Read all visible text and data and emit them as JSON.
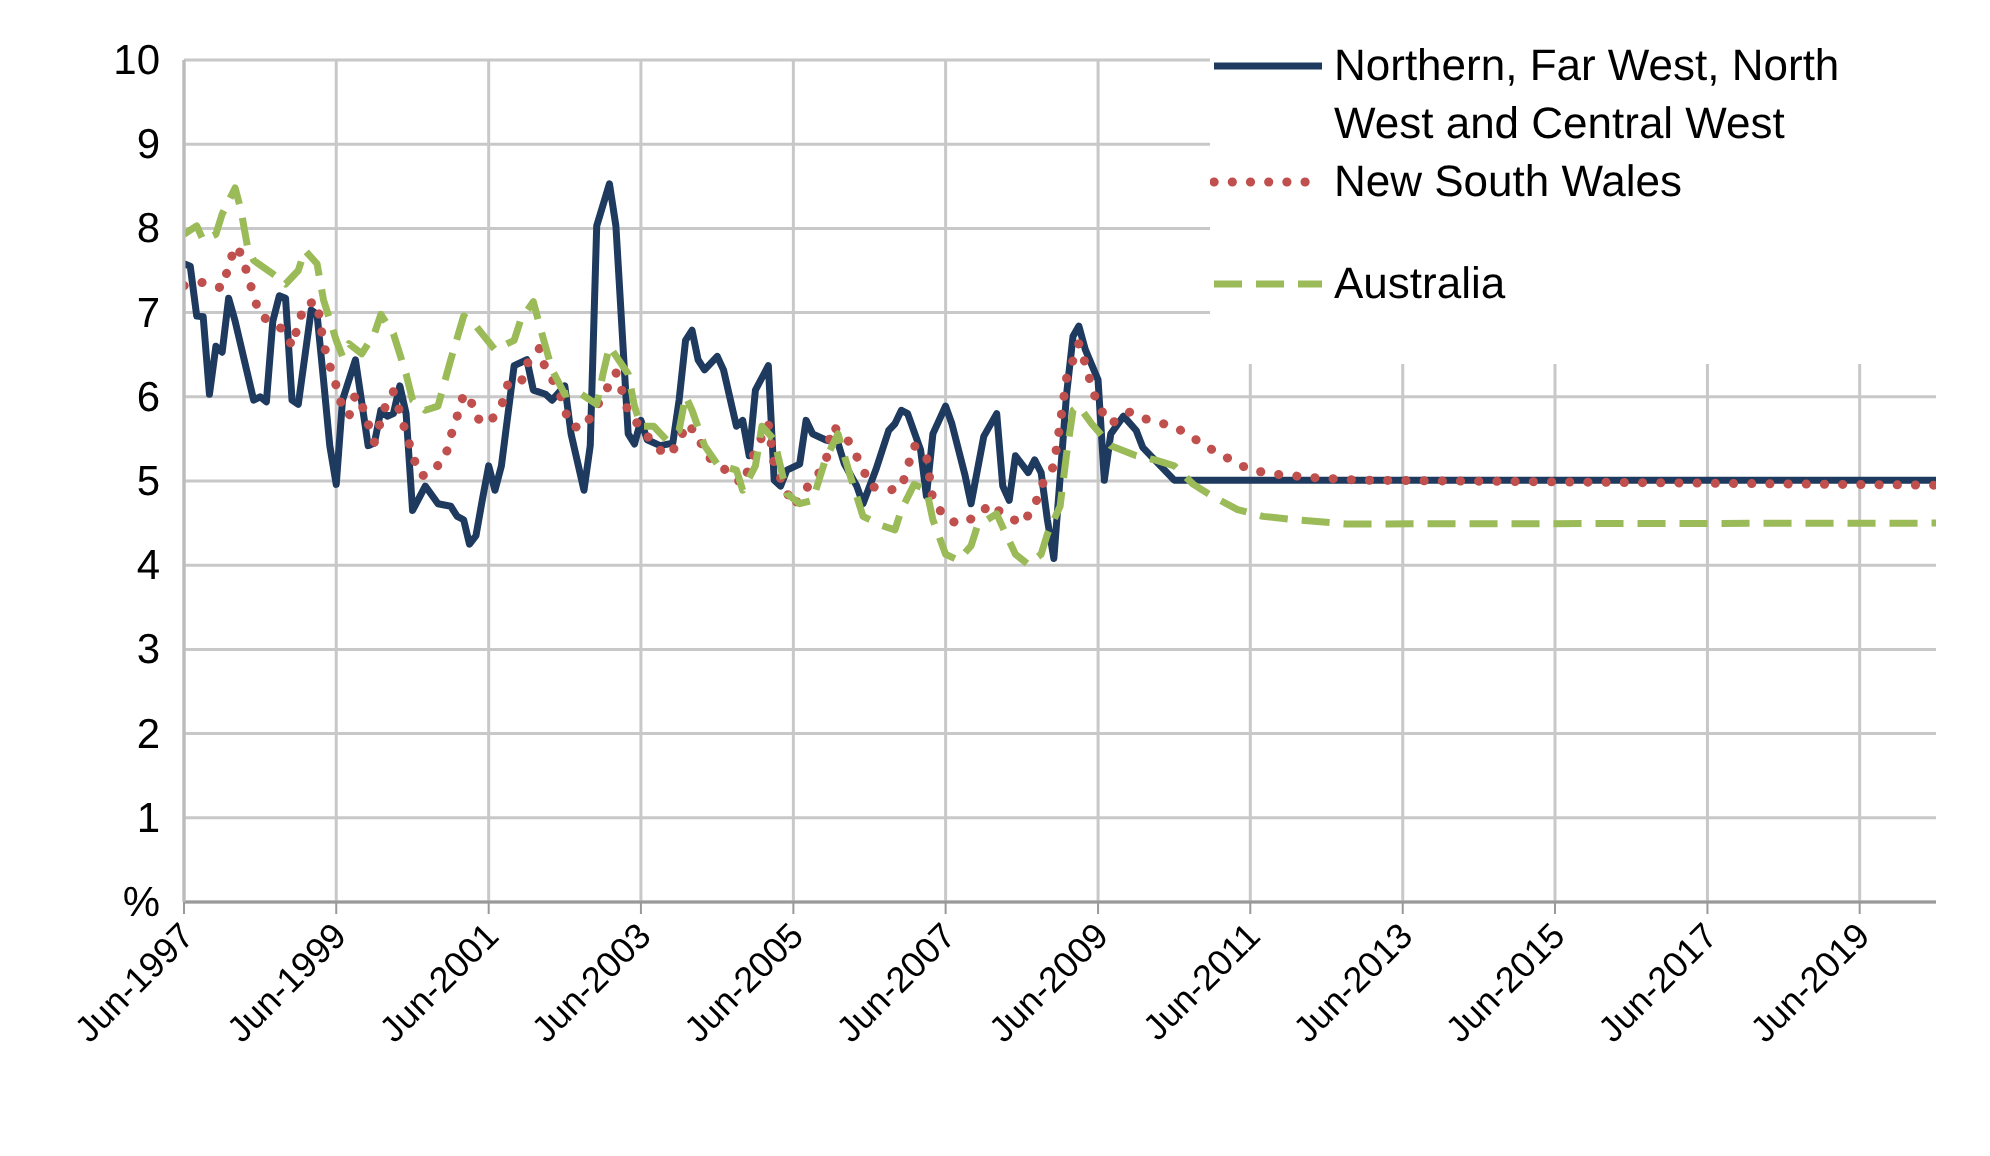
{
  "chart_data": {
    "type": "line",
    "legend": "top right",
    "grid": true,
    "ylim": [
      0,
      10
    ],
    "yticks": [
      {
        "value": 0,
        "label": "%"
      },
      1,
      2,
      3,
      4,
      5,
      6,
      7,
      8,
      9,
      10
    ],
    "xlim": [
      "1997-06",
      "2020-06"
    ],
    "xticks": [
      {
        "value": "1997-06",
        "label": "Jun-1997"
      },
      {
        "value": "1999-06",
        "label": "Jun-1999"
      },
      {
        "value": "2001-06",
        "label": "Jun-2001"
      },
      {
        "value": "2003-06",
        "label": "Jun-2003"
      },
      {
        "value": "2005-06",
        "label": "Jun-2005"
      },
      {
        "value": "2007-06",
        "label": "Jun-2007"
      },
      {
        "value": "2009-06",
        "label": "Jun-2009"
      },
      {
        "value": "2011-06",
        "label": "Jun-2011"
      },
      {
        "value": "2013-06",
        "label": "Jun-2013"
      },
      {
        "value": "2015-06",
        "label": "Jun-2015"
      },
      {
        "value": "2017-06",
        "label": "Jun-2017"
      },
      {
        "value": "2019-06",
        "label": "Jun-2019"
      }
    ],
    "series": [
      {
        "name": "Northern, Far West, North West and Central West",
        "color": "#1f3a5f",
        "line_style": "solid",
        "x": [
          "1997-06",
          "1997-07",
          "1997-08",
          "1997-09",
          "1997-10",
          "1997-11",
          "1997-12",
          "1998-01",
          "1998-02",
          "1998-05",
          "1998-06",
          "1998-07",
          "1998-08",
          "1998-09",
          "1998-10",
          "1998-11",
          "1998-12",
          "1999-02",
          "1999-03",
          "1999-04",
          "1999-05",
          "1999-06",
          "1999-07",
          "1999-09",
          "1999-11",
          "1999-12",
          "2000-01",
          "2000-02",
          "2000-03",
          "2000-04",
          "2000-05",
          "2000-06",
          "2000-08",
          "2000-10",
          "2000-12",
          "2001-01",
          "2001-02",
          "2001-03",
          "2001-04",
          "2001-05",
          "2001-06",
          "2001-07",
          "2001-08",
          "2001-10",
          "2001-12",
          "2002-01",
          "2002-03",
          "2002-04",
          "2002-06",
          "2002-07",
          "2002-09",
          "2002-10",
          "2002-11",
          "2003-01",
          "2003-02",
          "2003-04",
          "2003-05",
          "2003-06",
          "2003-07",
          "2003-09",
          "2003-11",
          "2003-12",
          "2004-01",
          "2004-02",
          "2004-03",
          "2004-04",
          "2004-06",
          "2004-07",
          "2004-09",
          "2004-10",
          "2004-11",
          "2004-12",
          "2005-02",
          "2005-03",
          "2005-04",
          "2005-05",
          "2005-07",
          "2005-08",
          "2005-09",
          "2005-11",
          "2006-01",
          "2006-02",
          "2006-04",
          "2006-05",
          "2006-07",
          "2006-09",
          "2006-10",
          "2006-11",
          "2006-12",
          "2007-02",
          "2007-03",
          "2007-04",
          "2007-06",
          "2007-07",
          "2007-09",
          "2007-10",
          "2007-12",
          "2008-02",
          "2008-03",
          "2008-04",
          "2008-05",
          "2008-07",
          "2008-08",
          "2008-09",
          "2008-10",
          "2008-11",
          "2009-01",
          "2009-02",
          "2009-03",
          "2009-04",
          "2009-06",
          "2009-07",
          "2009-08",
          "2009-10",
          "2009-12",
          "2010-01",
          "2010-06",
          "2020-06"
        ],
        "values": [
          7.58,
          7.55,
          6.96,
          6.95,
          6.03,
          6.6,
          6.53,
          7.17,
          6.9,
          5.96,
          6.0,
          5.94,
          6.9,
          7.2,
          7.17,
          5.96,
          5.91,
          7.03,
          6.98,
          6.2,
          5.42,
          4.96,
          5.96,
          6.44,
          5.42,
          5.45,
          5.84,
          5.77,
          5.8,
          6.13,
          5.8,
          4.65,
          4.94,
          4.73,
          4.7,
          4.58,
          4.54,
          4.25,
          4.35,
          4.77,
          5.18,
          4.89,
          5.18,
          6.37,
          6.44,
          6.08,
          6.03,
          5.96,
          6.13,
          5.56,
          4.89,
          5.42,
          8.03,
          8.53,
          8.03,
          5.56,
          5.44,
          5.72,
          5.49,
          5.42,
          5.45,
          5.96,
          6.67,
          6.79,
          6.44,
          6.32,
          6.48,
          6.32,
          5.65,
          5.72,
          5.3,
          6.08,
          6.37,
          5.01,
          4.94,
          5.13,
          5.2,
          5.72,
          5.56,
          5.49,
          5.45,
          5.2,
          4.94,
          4.73,
          5.13,
          5.6,
          5.68,
          5.84,
          5.8,
          5.37,
          4.82,
          5.56,
          5.89,
          5.68,
          5.08,
          4.73,
          5.53,
          5.8,
          4.94,
          4.77,
          5.3,
          5.1,
          5.25,
          5.1,
          4.54,
          4.08,
          6.03,
          6.72,
          6.84,
          6.56,
          6.2,
          5.01,
          5.56,
          5.77,
          5.6,
          5.4,
          5.01,
          5.01
        ]
      },
      {
        "name": "New South Wales",
        "color": "#c0504d",
        "line_style": "dotted",
        "x": [
          "1997-06",
          "1997-09",
          "1997-12",
          "1998-01",
          "1998-02",
          "1998-03",
          "1998-04",
          "1998-05",
          "1998-06",
          "1998-08",
          "1998-10",
          "1998-11",
          "1998-12",
          "1999-01",
          "1999-03",
          "1999-04",
          "1999-05",
          "1999-06",
          "1999-07",
          "1999-08",
          "1999-09",
          "1999-10",
          "1999-11",
          "1999-12",
          "2000-01",
          "2000-02",
          "2000-03",
          "2000-04",
          "2000-05",
          "2000-06",
          "2000-07",
          "2000-08",
          "2000-11",
          "2000-12",
          "2001-01",
          "2001-02",
          "2001-03",
          "2001-04",
          "2001-06",
          "2001-08",
          "2001-09",
          "2001-11",
          "2001-12",
          "2002-02",
          "2002-03",
          "2002-05",
          "2002-06",
          "2002-07",
          "2002-09",
          "2002-12",
          "2003-02",
          "2003-03",
          "2003-04",
          "2003-06",
          "2003-08",
          "2003-10",
          "2003-12",
          "2004-01",
          "2004-03",
          "2004-04",
          "2004-07",
          "2004-10",
          "2004-12",
          "2005-02",
          "2005-03",
          "2005-06",
          "2005-09",
          "2005-11",
          "2005-12",
          "2006-02",
          "2006-05",
          "2006-06",
          "2006-09",
          "2006-11",
          "2007-01",
          "2007-03",
          "2007-04",
          "2007-06",
          "2007-08",
          "2007-11",
          "2008-01",
          "2008-03",
          "2008-06",
          "2008-08",
          "2008-09",
          "2008-11",
          "2008-12",
          "2009-01",
          "2009-03",
          "2009-04",
          "2009-05",
          "2009-06",
          "2009-08",
          "2009-11",
          "2010-02",
          "2010-06",
          "2010-09",
          "2010-12",
          "2011-03",
          "2011-06",
          "2011-10",
          "2012-04",
          "2012-11",
          "2020-06"
        ],
        "values": [
          7.32,
          7.36,
          7.29,
          7.55,
          7.79,
          7.7,
          7.46,
          7.2,
          6.96,
          6.89,
          6.77,
          6.6,
          6.86,
          7.1,
          7.13,
          6.63,
          6.37,
          6.13,
          5.87,
          5.77,
          6.03,
          5.91,
          5.68,
          5.46,
          5.72,
          5.96,
          6.06,
          5.82,
          5.56,
          5.32,
          5.08,
          5.06,
          5.25,
          5.53,
          5.77,
          6.03,
          6.01,
          5.75,
          5.68,
          5.89,
          6.15,
          6.15,
          6.39,
          6.58,
          6.32,
          6.1,
          5.84,
          5.65,
          5.63,
          6.01,
          6.29,
          6.08,
          5.82,
          5.63,
          5.44,
          5.3,
          5.44,
          5.68,
          5.56,
          5.32,
          5.15,
          4.96,
          5.37,
          5.68,
          5.2,
          4.7,
          5.01,
          5.18,
          5.65,
          5.56,
          5.15,
          4.94,
          4.89,
          4.92,
          5.42,
          5.3,
          4.77,
          4.56,
          4.49,
          4.58,
          4.73,
          4.61,
          4.49,
          4.7,
          4.94,
          5.18,
          5.68,
          6.22,
          6.63,
          6.39,
          6.13,
          5.89,
          5.68,
          5.82,
          5.72,
          5.65,
          5.51,
          5.37,
          5.25,
          5.13,
          5.08,
          5.04,
          5.01,
          4.95
        ]
      },
      {
        "name": "Australia",
        "color": "#9bbb59",
        "line_style": "dashed",
        "x": [
          "1997-06",
          "1997-08",
          "1997-09",
          "1997-11",
          "1997-12",
          "1998-02",
          "1998-03",
          "1998-04",
          "1998-05",
          "1998-08",
          "1998-10",
          "1998-12",
          "1999-01",
          "1999-03",
          "1999-04",
          "1999-06",
          "1999-07",
          "1999-08",
          "1999-10",
          "1999-12",
          "2000-01",
          "2000-03",
          "2000-05",
          "2000-06",
          "2000-08",
          "2000-10",
          "2000-12",
          "2001-02",
          "2001-04",
          "2001-07",
          "2001-10",
          "2001-11",
          "2002-01",
          "2002-02",
          "2002-04",
          "2002-06",
          "2002-08",
          "2002-11",
          "2002-12",
          "2003-01",
          "2003-04",
          "2003-05",
          "2003-06",
          "2003-08",
          "2003-10",
          "2003-12",
          "2004-01",
          "2004-02",
          "2004-04",
          "2004-06",
          "2004-09",
          "2004-10",
          "2004-12",
          "2005-01",
          "2005-03",
          "2005-05",
          "2005-07",
          "2005-09",
          "2005-11",
          "2006-01",
          "2006-03",
          "2006-05",
          "2006-08",
          "2006-10",
          "2006-11",
          "2007-01",
          "2007-03",
          "2007-04",
          "2007-06",
          "2007-08",
          "2007-10",
          "2007-11",
          "2008-02",
          "2008-03",
          "2008-05",
          "2008-07",
          "2008-09",
          "2008-10",
          "2008-12",
          "2009-01",
          "2009-02",
          "2009-03",
          "2009-05",
          "2009-08",
          "2009-12",
          "2010-03",
          "2010-06",
          "2010-09",
          "2010-12",
          "2011-04",
          "2011-08",
          "2012-01",
          "2012-09",
          "2020-06"
        ],
        "values": [
          7.93,
          8.03,
          7.86,
          7.93,
          8.17,
          8.48,
          8.22,
          7.79,
          7.62,
          7.46,
          7.34,
          7.5,
          7.74,
          7.58,
          7.15,
          6.67,
          6.48,
          6.63,
          6.51,
          6.75,
          6.98,
          6.75,
          6.27,
          5.96,
          5.84,
          5.89,
          6.44,
          6.96,
          6.84,
          6.56,
          6.67,
          6.91,
          7.13,
          6.84,
          6.32,
          6.03,
          6.06,
          5.91,
          6.27,
          6.6,
          6.27,
          5.89,
          5.65,
          5.65,
          5.49,
          5.6,
          6.01,
          5.84,
          5.42,
          5.2,
          5.13,
          4.89,
          5.18,
          5.65,
          5.49,
          4.85,
          4.73,
          4.77,
          5.25,
          5.56,
          5.06,
          4.58,
          4.47,
          4.42,
          4.66,
          4.96,
          4.9,
          4.54,
          4.13,
          4.06,
          4.23,
          4.47,
          4.61,
          4.45,
          4.13,
          4.01,
          4.13,
          4.37,
          4.7,
          5.32,
          5.84,
          5.89,
          5.68,
          5.42,
          5.3,
          5.25,
          5.18,
          4.96,
          4.82,
          4.66,
          4.58,
          4.54,
          4.49,
          4.5
        ]
      }
    ]
  }
}
